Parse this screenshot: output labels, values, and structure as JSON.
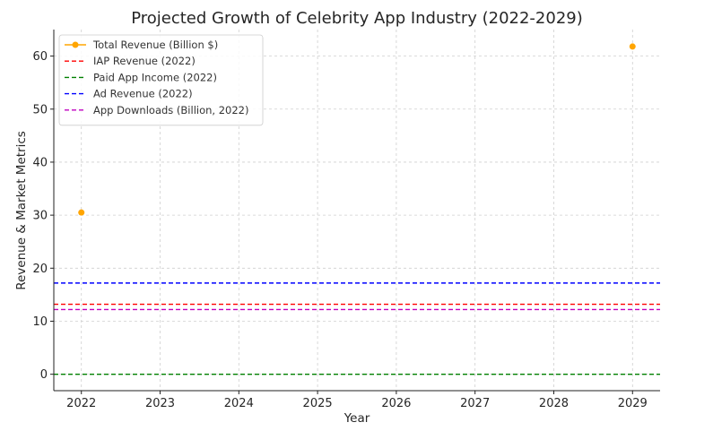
{
  "chart_data": {
    "type": "line",
    "title": "Projected Growth of Celebrity App Industry (2022-2029)",
    "xlabel": "Year",
    "ylabel": "Revenue & Market Metrics",
    "xlim": [
      2021.65,
      2029.35
    ],
    "ylim": [
      -3.1,
      65
    ],
    "x_ticks": [
      2022,
      2023,
      2024,
      2025,
      2026,
      2027,
      2028,
      2029
    ],
    "y_ticks": [
      0,
      10,
      20,
      30,
      40,
      50,
      60
    ],
    "grid": true,
    "legend_position": "top-left",
    "series": [
      {
        "name": "Total Revenue (Billion $)",
        "kind": "line-marker",
        "color": "#FFA500",
        "x": [
          2022,
          2029
        ],
        "y": [
          30.5,
          61.8
        ]
      },
      {
        "name": "IAP Revenue (2022)",
        "kind": "hline",
        "color": "#FF0000",
        "y": 13.2
      },
      {
        "name": "Paid App Income (2022)",
        "kind": "hline",
        "color": "#008000",
        "y": 0.0
      },
      {
        "name": "Ad Revenue (2022)",
        "kind": "hline",
        "color": "#0000FF",
        "y": 17.2
      },
      {
        "name": "App Downloads (Billion, 2022)",
        "kind": "hline",
        "color": "#C000C0",
        "y": 12.2
      }
    ]
  }
}
